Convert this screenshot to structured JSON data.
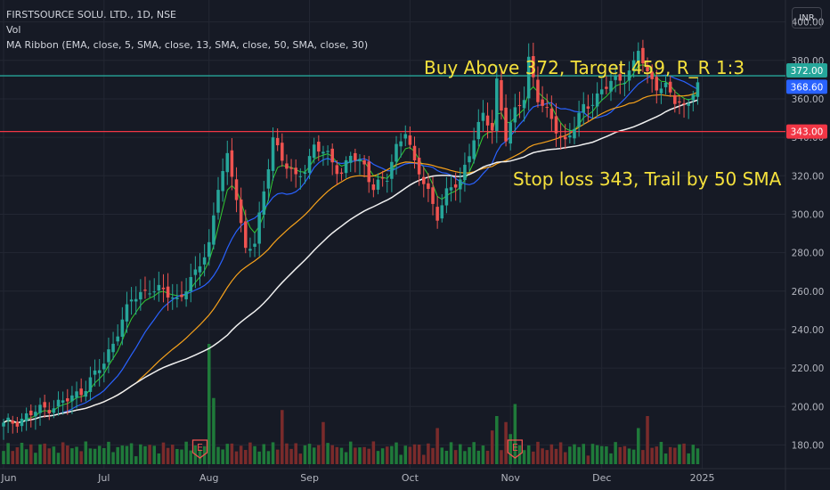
{
  "header": {
    "symbol_line": "FIRSTSOURCE SOLU. LTD., 1D, NSE",
    "vol_label": "Vol",
    "ma_ribbon": "MA Ribbon (EMA, close, 5, SMA, close, 13, SMA, close, 50, SMA, close, 30)",
    "currency": "INR"
  },
  "annotations": {
    "buy_text": "Buy Above 372, Target 459, R_R 1:3",
    "stop_text": "Stop loss 343, Trail by 50 SMA"
  },
  "colors": {
    "background": "#161a25",
    "up": "#26a69a",
    "down": "#ef5350",
    "vol_up": "#1f7a3a",
    "vol_down": "#7a2b2b",
    "ema5": "#32cd32",
    "sma13": "#2962ff",
    "sma30": "#f7a21b",
    "sma50": "#f0f0f0",
    "resistance": "#26a69a",
    "support": "#f23645",
    "annotation": "#f5e13c"
  },
  "chart_data": {
    "type": "candlestick",
    "title": "FIRSTSOURCE SOLU. LTD., 1D, NSE",
    "y_axis": {
      "ticks": [
        "400.00",
        "380.00",
        "360.00",
        "340.00",
        "320.00",
        "300.00",
        "280.00",
        "260.00",
        "240.00",
        "220.00",
        "200.00",
        "180.00"
      ],
      "ylim": [
        170,
        404
      ]
    },
    "x_axis": {
      "ticks": [
        {
          "label": "Jun",
          "day": 0
        },
        {
          "label": "Jul",
          "day": 22
        },
        {
          "label": "Aug",
          "day": 45
        },
        {
          "label": "Sep",
          "day": 67
        },
        {
          "label": "Oct",
          "day": 89
        },
        {
          "label": "Nov",
          "day": 111
        },
        {
          "label": "Dec",
          "day": 131
        },
        {
          "label": "2025",
          "day": 153
        }
      ],
      "xlim": [
        0,
        172
      ]
    },
    "price_labels": [
      {
        "label": "372.00",
        "value": 372,
        "color": "#26a69a"
      },
      {
        "label": "368.60",
        "value": 368.6,
        "color": "#2962ff"
      },
      {
        "label": "343.00",
        "value": 343,
        "color": "#f23645"
      }
    ],
    "horizontal_lines": [
      {
        "name": "Buy Above",
        "value": 372,
        "color": "#26a69a"
      },
      {
        "name": "Stop loss",
        "value": 343,
        "color": "#f23645"
      }
    ],
    "earnings_markers": [
      {
        "label": "E",
        "day": 43
      },
      {
        "label": "E",
        "day": 112
      }
    ],
    "close_anchor_points": [
      [
        0,
        190
      ],
      [
        5,
        195
      ],
      [
        10,
        200
      ],
      [
        15,
        204
      ],
      [
        18,
        211
      ],
      [
        22,
        222
      ],
      [
        25,
        240
      ],
      [
        28,
        255
      ],
      [
        32,
        262
      ],
      [
        36,
        258
      ],
      [
        38,
        256
      ],
      [
        42,
        268
      ],
      [
        45,
        285
      ],
      [
        47,
        315
      ],
      [
        49,
        328
      ],
      [
        51,
        310
      ],
      [
        53,
        282
      ],
      [
        55,
        285
      ],
      [
        57,
        310
      ],
      [
        59,
        342
      ],
      [
        61,
        328
      ],
      [
        64,
        318
      ],
      [
        66,
        325
      ],
      [
        68,
        335
      ],
      [
        71,
        330
      ],
      [
        74,
        322
      ],
      [
        76,
        330
      ],
      [
        79,
        325
      ],
      [
        81,
        315
      ],
      [
        84,
        318
      ],
      [
        86,
        335
      ],
      [
        88,
        345
      ],
      [
        90,
        325
      ],
      [
        93,
        312
      ],
      [
        95,
        300
      ],
      [
        97,
        310
      ],
      [
        100,
        318
      ],
      [
        103,
        340
      ],
      [
        105,
        350
      ],
      [
        107,
        345
      ],
      [
        108,
        370
      ],
      [
        110,
        340
      ],
      [
        112,
        352
      ],
      [
        114,
        362
      ],
      [
        115,
        382
      ],
      [
        117,
        360
      ],
      [
        119,
        352
      ],
      [
        121,
        345
      ],
      [
        123,
        338
      ],
      [
        125,
        345
      ],
      [
        127,
        355
      ],
      [
        130,
        362
      ],
      [
        133,
        368
      ],
      [
        136,
        372
      ],
      [
        138,
        378
      ],
      [
        139,
        385
      ],
      [
        141,
        372
      ],
      [
        143,
        368
      ],
      [
        145,
        366
      ],
      [
        147,
        358
      ],
      [
        149,
        356
      ],
      [
        151,
        365
      ],
      [
        152,
        368.6
      ]
    ],
    "series": [
      {
        "name": "EMA 5"
      },
      {
        "name": "SMA 13"
      },
      {
        "name": "SMA 30"
      },
      {
        "name": "SMA 50"
      }
    ]
  }
}
